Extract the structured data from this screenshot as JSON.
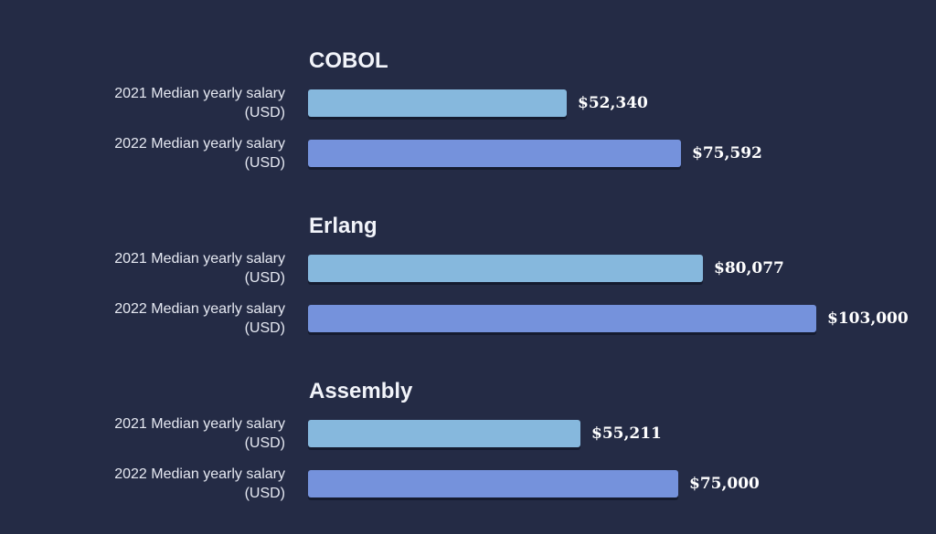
{
  "chart_data": {
    "type": "bar",
    "orientation": "horizontal",
    "xlim": [
      0,
      110000
    ],
    "grid": false,
    "colors": {
      "background": "#242b45",
      "2021": "#86b8dd",
      "2022": "#7592dc",
      "text": "#f2f4fa"
    },
    "groups": [
      {
        "title": "COBOL",
        "rows": [
          {
            "label_line1": "2021 Median yearly salary",
            "label_line2": "(USD)",
            "value": 52340,
            "value_label": "$52,340",
            "year": "2021"
          },
          {
            "label_line1": "2022 Median yearly salary",
            "label_line2": "(USD)",
            "value": 75592,
            "value_label": "$75,592",
            "year": "2022"
          }
        ]
      },
      {
        "title": "Erlang",
        "rows": [
          {
            "label_line1": "2021 Median yearly salary",
            "label_line2": "(USD)",
            "value": 80077,
            "value_label": "$80,077",
            "year": "2021"
          },
          {
            "label_line1": "2022 Median yearly salary",
            "label_line2": "(USD)",
            "value": 103000,
            "value_label": "$103,000",
            "year": "2022"
          }
        ]
      },
      {
        "title": "Assembly",
        "rows": [
          {
            "label_line1": "2021 Median yearly salary",
            "label_line2": "(USD)",
            "value": 55211,
            "value_label": "$55,211",
            "year": "2021"
          },
          {
            "label_line1": "2022 Median yearly salary",
            "label_line2": "(USD)",
            "value": 75000,
            "value_label": "$75,000",
            "year": "2022"
          }
        ]
      }
    ]
  }
}
